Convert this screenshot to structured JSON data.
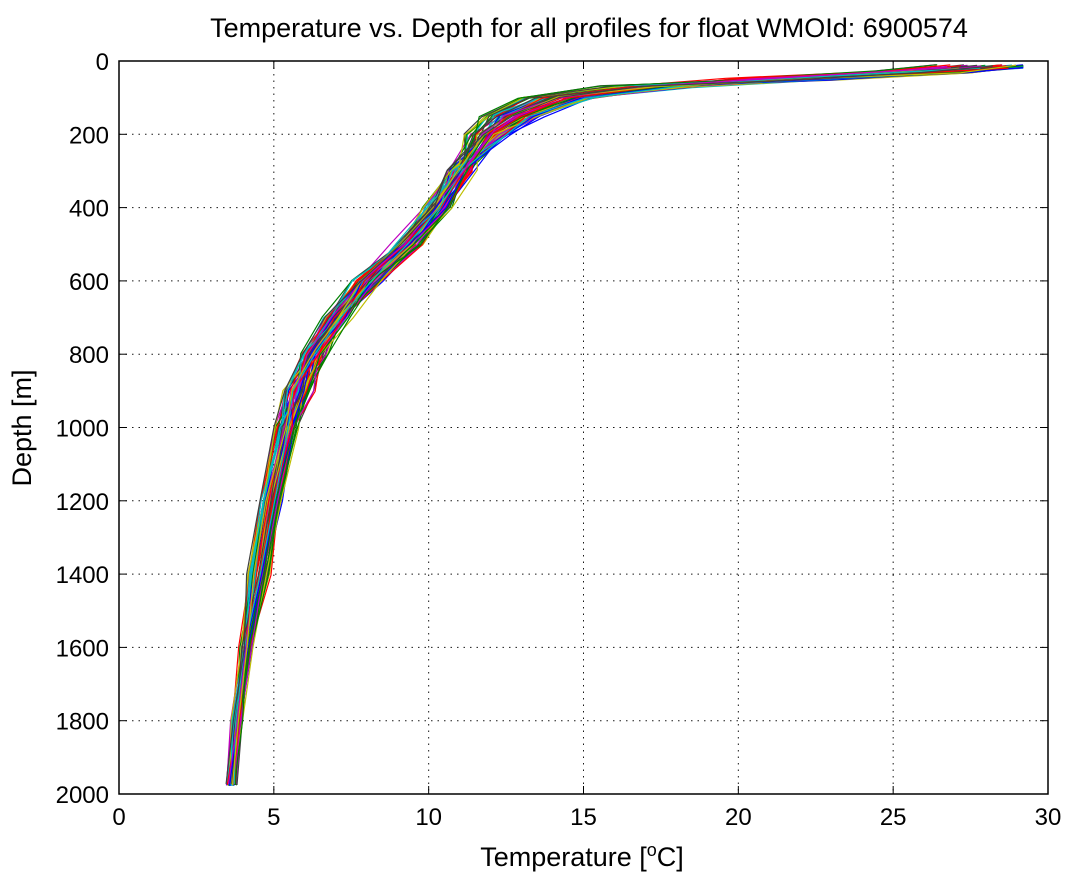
{
  "chart_data": {
    "type": "line",
    "title": "Temperature vs. Depth for all profiles for float WMOId: 6900574",
    "xlabel": "Temperature [",
    "xlabel_sup": "o",
    "xlabel_end": "C]",
    "ylabel": "Depth [m]",
    "xlim": [
      0,
      30
    ],
    "ylim": [
      0,
      2000
    ],
    "y_reversed": true,
    "grid": true,
    "legend": "none",
    "xticks": [
      0,
      5,
      10,
      15,
      20,
      25,
      30
    ],
    "yticks": [
      0,
      200,
      400,
      600,
      800,
      1000,
      1200,
      1400,
      1600,
      1800,
      2000
    ],
    "xtick_labels": [
      "0",
      "5",
      "10",
      "15",
      "20",
      "25",
      "30"
    ],
    "ytick_labels": [
      "0",
      "200",
      "400",
      "600",
      "800",
      "1000",
      "1200",
      "1400",
      "1600",
      "1800",
      "2000"
    ],
    "series_colors": [
      "#0000ff",
      "#008000",
      "#ff0000",
      "#00bfbf",
      "#bf00bf",
      "#bfbf00",
      "#404040"
    ],
    "representative_profile": {
      "depth": [
        10,
        30,
        50,
        70,
        100,
        150,
        200,
        300,
        400,
        500,
        600,
        700,
        800,
        900,
        1000,
        1200,
        1400,
        1600,
        1800,
        1975
      ],
      "temperature": [
        28.2,
        26.0,
        21.5,
        17.0,
        14.2,
        12.7,
        11.9,
        11.0,
        10.3,
        9.3,
        8.0,
        7.0,
        6.3,
        5.8,
        5.4,
        4.9,
        4.5,
        4.1,
        3.8,
        3.6
      ]
    },
    "profile_count": 70
  }
}
